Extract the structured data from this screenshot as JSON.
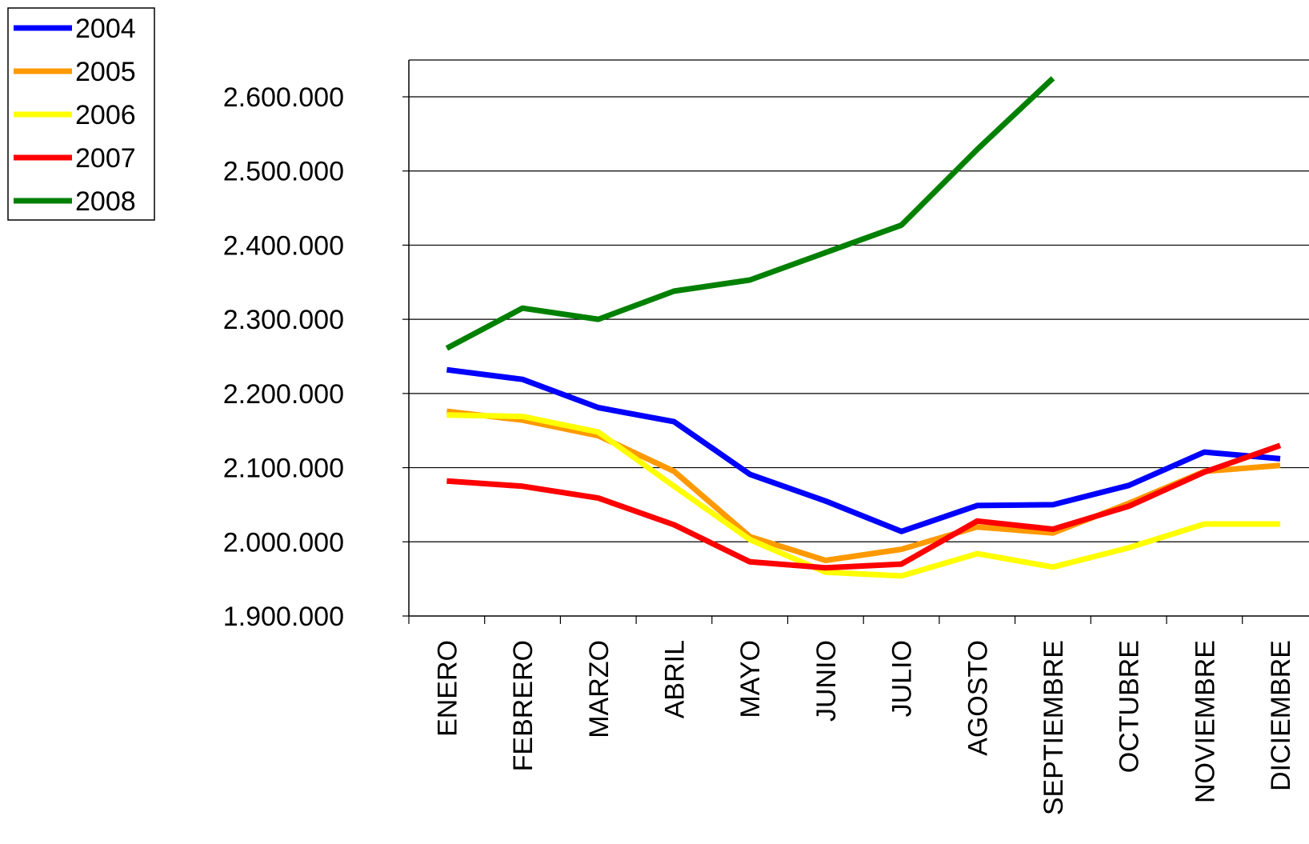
{
  "chart_data": {
    "type": "line",
    "title": "",
    "xlabel": "",
    "ylabel": "",
    "categories": [
      "ENERO",
      "FEBRERO",
      "MARZO",
      "ABRIL",
      "MAYO",
      "JUNIO",
      "JULIO",
      "AGOSTO",
      "SEPTIEMBRE",
      "OCTUBRE",
      "NOVIEMBRE",
      "DICIEMBRE"
    ],
    "ylim": [
      1900000,
      2650000
    ],
    "yticks": [
      1900000,
      2000000,
      2100000,
      2200000,
      2300000,
      2400000,
      2500000,
      2600000
    ],
    "ytick_labels": [
      "1.900.000",
      "2.000.000",
      "2.100.000",
      "2.200.000",
      "2.300.000",
      "2.400.000",
      "2.500.000",
      "2.600.000"
    ],
    "grid": "horizontal",
    "legend_position": "top-left",
    "series": [
      {
        "name": "2004",
        "color": "#0000FF",
        "values": [
          2232000,
          2219000,
          2181000,
          2162000,
          2091000,
          2055000,
          2014000,
          2049000,
          2050000,
          2076000,
          2121000,
          2112000
        ]
      },
      {
        "name": "2005",
        "color": "#FF9900",
        "values": [
          2176000,
          2164000,
          2143000,
          2095000,
          2007000,
          1975000,
          1990000,
          2020000,
          2012000,
          2052000,
          2095000,
          2103000
        ]
      },
      {
        "name": "2006",
        "color": "#FFFF00",
        "values": [
          2171000,
          2169000,
          2148000,
          2075000,
          2003000,
          1959000,
          1954000,
          1984000,
          1966000,
          1992000,
          2024000,
          2024000
        ]
      },
      {
        "name": "2007",
        "color": "#FF0000",
        "values": [
          2082000,
          2075000,
          2059000,
          2023000,
          1973000,
          1965000,
          1970000,
          2028000,
          2017000,
          2048000,
          2094000,
          2130000
        ]
      },
      {
        "name": "2008",
        "color": "#008000",
        "values": [
          2261000,
          2315000,
          2300000,
          2338000,
          2353000,
          2390000,
          2427000,
          2529000,
          2625000,
          null,
          null,
          null
        ]
      }
    ]
  }
}
